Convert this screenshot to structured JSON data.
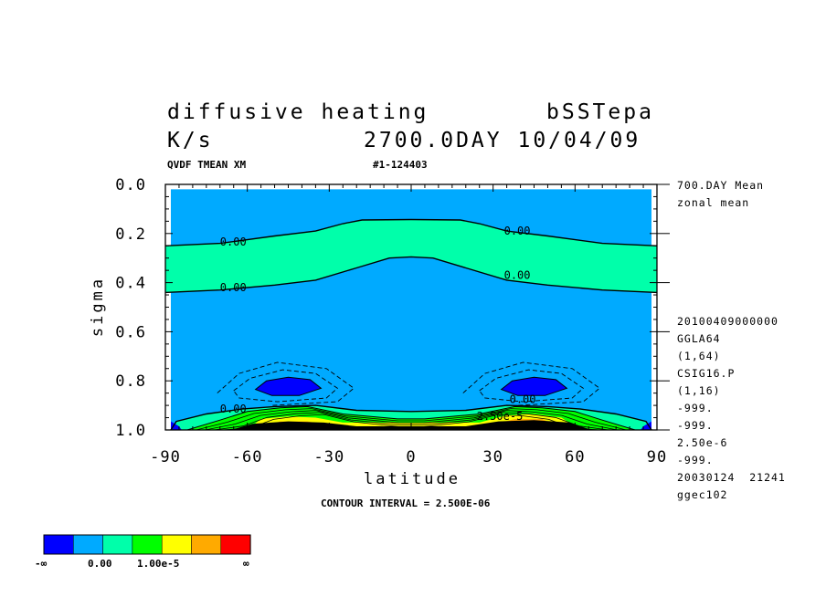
{
  "header": {
    "title": "diffusive heating",
    "run_name": "bSSTepa",
    "units": "K/s",
    "time_stamp": "2700.0DAY 10/04/09",
    "variable_code": "QVDF TMEAN XM",
    "run_id": "#1-124403"
  },
  "side_info": {
    "mean_label": "700.DAY Mean",
    "zonal_label": "zonal mean",
    "lines": [
      "20100409000000",
      "GGLA64",
      "(1,64)",
      "CSIG16.P",
      "(1,16)",
      "-999.",
      "-999.",
      "2.50e-6",
      "-999.",
      "20030124  21241",
      "ggec102"
    ]
  },
  "footer": {
    "contour_interval": "CONTOUR INTERVAL = 2.500E-06"
  },
  "colorbar": {
    "colors": [
      "#0000ff",
      "#00aaff",
      "#00ffaa",
      "#00ff00",
      "#ffff00",
      "#ffaa00",
      "#ff0000"
    ],
    "labels": [
      "-∞",
      "0.00",
      "1.00e-5",
      "∞"
    ]
  },
  "chart_data": {
    "type": "contour",
    "title": "diffusive heating",
    "xlabel": "latitude",
    "ylabel": "sigma",
    "xlim": [
      -90,
      90
    ],
    "ylim": [
      0.0,
      1.0
    ],
    "y_inverted": true,
    "x_ticks": [
      -90,
      -60,
      -30,
      0,
      30,
      60,
      90
    ],
    "x_tick_labels": [
      "-90",
      "-60",
      "-30",
      "0",
      "30",
      "60",
      "90"
    ],
    "y_ticks": [
      0.0,
      0.2,
      0.4,
      0.6,
      0.8,
      1.0
    ],
    "y_tick_labels": [
      "0.0",
      "0.2",
      "0.4",
      "0.6",
      "0.8",
      "1.0"
    ],
    "contour_interval": 2.5e-06,
    "contour_labels": [
      {
        "text": "0.00",
        "lat": -70,
        "sigma": 0.235
      },
      {
        "text": "0.00",
        "lat": 34,
        "sigma": 0.19
      },
      {
        "text": "0.00",
        "lat": -70,
        "sigma": 0.42
      },
      {
        "text": "0.00",
        "lat": 34,
        "sigma": 0.37
      },
      {
        "text": "0.00",
        "lat": -70,
        "sigma": 0.915
      },
      {
        "text": "0.00",
        "lat": 36,
        "sigma": 0.875
      },
      {
        "text": "2.50e-5",
        "lat": 24,
        "sigma": 0.945
      }
    ],
    "zero_upper_boundary": [
      [
        -90,
        0.25
      ],
      [
        -70,
        0.24
      ],
      [
        -50,
        0.21
      ],
      [
        -35,
        0.19
      ],
      [
        -25,
        0.16
      ],
      [
        -18,
        0.145
      ],
      [
        0,
        0.143
      ],
      [
        18,
        0.145
      ],
      [
        25,
        0.16
      ],
      [
        35,
        0.19
      ],
      [
        50,
        0.21
      ],
      [
        70,
        0.24
      ],
      [
        90,
        0.25
      ]
    ],
    "zero_lower_boundary": [
      [
        -90,
        0.44
      ],
      [
        -70,
        0.43
      ],
      [
        -50,
        0.41
      ],
      [
        -35,
        0.39
      ],
      [
        -20,
        0.34
      ],
      [
        -8,
        0.3
      ],
      [
        0,
        0.295
      ],
      [
        8,
        0.3
      ],
      [
        20,
        0.34
      ],
      [
        35,
        0.39
      ],
      [
        50,
        0.41
      ],
      [
        70,
        0.43
      ],
      [
        90,
        0.44
      ]
    ],
    "negative_minima": [
      {
        "lat": -45,
        "sigma": 0.825
      },
      {
        "lat": 45,
        "sigma": 0.825
      }
    ]
  }
}
